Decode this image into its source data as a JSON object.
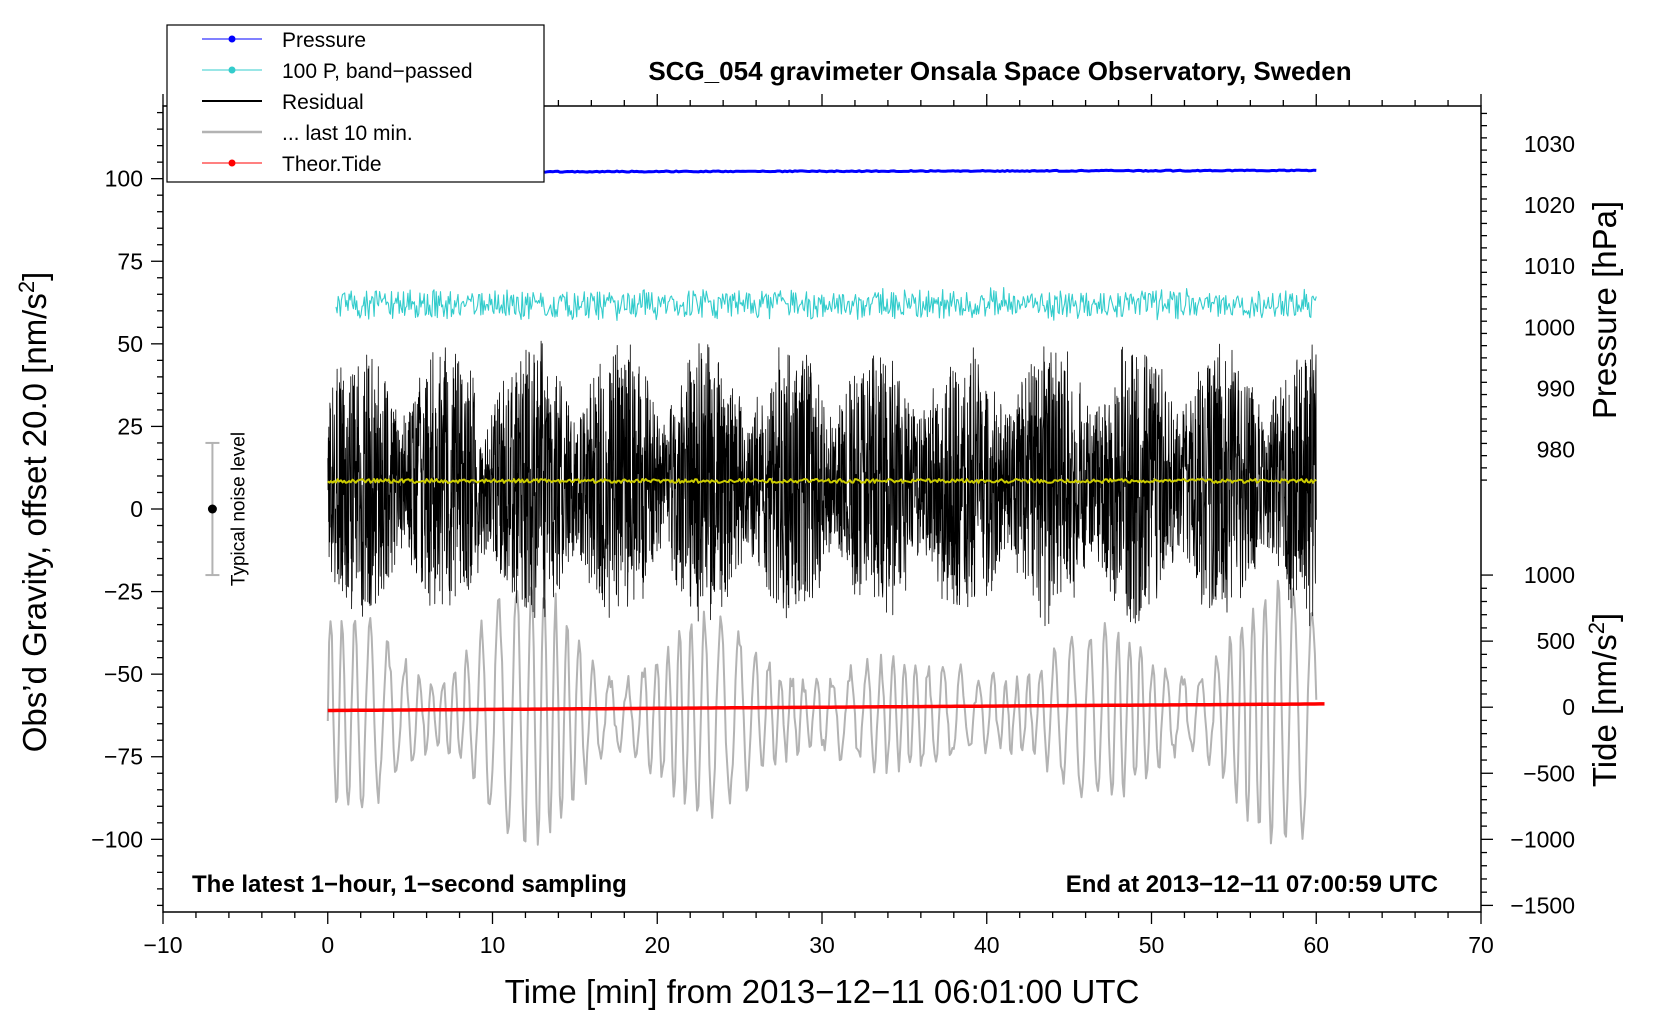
{
  "chart_data": {
    "type": "line",
    "title": "SCG_054 gravimeter Onsala Space Observatory, Sweden",
    "xlabel": "Time [min] from 2013−12−11 06:01:00 UTC",
    "ylabel_left": "Obs’d Gravity, offset 20.0 [nm/s",
    "ylabel_left_sup": "2",
    "ylabel_left_end": "]",
    "ylabel_right_pressure": "Pressure [hPa]",
    "ylabel_right_tide": "Tide [nm/s",
    "ylabel_right_tide_sup": "2",
    "ylabel_right_tide_end": "]",
    "xlim": [
      -10,
      70
    ],
    "ylim": [
      -122,
      122
    ],
    "x_ticks": [
      "−10",
      "0",
      "10",
      "20",
      "30",
      "40",
      "50",
      "60",
      "70"
    ],
    "x_tick_values": [
      -10,
      0,
      10,
      20,
      30,
      40,
      50,
      60,
      70
    ],
    "y_ticks": [
      "100",
      "75",
      "50",
      "25",
      "0",
      "−25",
      "−50",
      "−75",
      "−100"
    ],
    "y_tick_values": [
      100,
      75,
      50,
      25,
      0,
      -25,
      -50,
      -75,
      -100
    ],
    "pressure_axis": {
      "ticks": [
        "1030",
        "1020",
        "1010",
        "1000",
        "990",
        "980"
      ],
      "tick_values": [
        1030,
        1020,
        1010,
        1000,
        990,
        980
      ],
      "equiv_gravity_at_1000": 55,
      "gravity_per_hPa": 1.85
    },
    "tide_axis": {
      "ticks": [
        "1000",
        "500",
        "0",
        "−500",
        "−1000",
        "−1500"
      ],
      "tick_values": [
        1000,
        500,
        0,
        -500,
        -1000,
        -1500
      ],
      "equiv_gravity_at_0": -60,
      "gravity_per_unit": 0.04
    },
    "legend": [
      {
        "label": "Pressure",
        "color": "#0000ff",
        "marker": true
      },
      {
        "label": "100 P, band−passed",
        "color": "#33cccc",
        "marker": true
      },
      {
        "label": "Residual",
        "color": "#000000",
        "marker": false
      },
      {
        "label": "... last 10 min.",
        "color": "#b3b3b3",
        "marker": false
      },
      {
        "label": "Theor.Tide",
        "color": "#ff0000",
        "marker": true
      }
    ],
    "annotations": {
      "left": "The latest 1−hour, 1−second sampling",
      "right": "End at 2013−12−11 07:00:59 UTC"
    },
    "noise_bar": {
      "label": "Typical noise level",
      "x": -7,
      "center": 0,
      "low": -20,
      "high": 20
    },
    "series": [
      {
        "name": "Pressure",
        "color": "#0000ff",
        "x_range": [
          0,
          60
        ],
        "level": 102,
        "level_end": 102.5,
        "noise": 0.3
      },
      {
        "name": "100 P, band−passed",
        "color": "#33cccc",
        "x_range": [
          0.5,
          60
        ],
        "level": 62,
        "amplitude": 4
      },
      {
        "name": "Residual",
        "color": "#000000",
        "x_range": [
          0,
          60
        ],
        "level": 8,
        "amplitude_min": 20,
        "amplitude_max": 45
      },
      {
        "name": "Residual smoothed",
        "color": "#cccc00",
        "x_range": [
          0,
          60
        ],
        "level": 8.5,
        "amplitude": 0.6
      },
      {
        "name": "... last 10 min.",
        "color": "#b3b3b3",
        "x_range": [
          0,
          60
        ],
        "level": -62,
        "amplitude_min": 10,
        "amplitude_max": 40
      },
      {
        "name": "Theor.Tide",
        "color": "#ff0000",
        "x_range": [
          0,
          60.5
        ],
        "start": -61,
        "end": -59
      }
    ]
  }
}
